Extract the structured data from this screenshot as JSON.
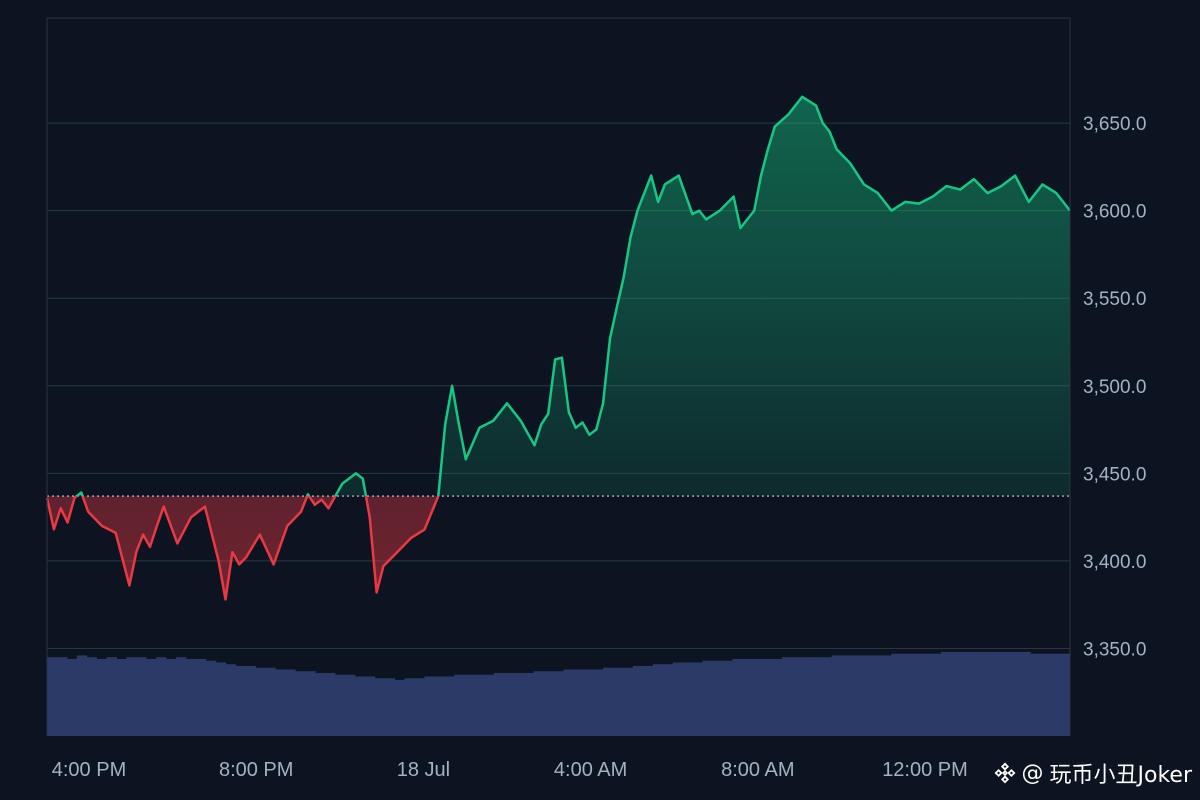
{
  "watermark": {
    "prefix": "@",
    "text": "玩币小丑Joker",
    "icon": "binance-diamond-icon"
  },
  "chart_data": {
    "type": "area",
    "title": "",
    "xlabel": "",
    "ylabel": "",
    "ylim": [
      3300,
      3710
    ],
    "yticks": [
      3350,
      3400,
      3450,
      3500,
      3550,
      3600,
      3650
    ],
    "ytick_labels": [
      "3,350.0",
      "3,400.0",
      "3,450.0",
      "3,500.0",
      "3,550.0",
      "3,600.0",
      "3,650.0"
    ],
    "x_range_hours": [
      15.7,
      30.6
    ],
    "xticks": [
      16,
      20,
      24,
      28,
      32,
      36
    ],
    "xtick_labels": [
      "4:00 PM",
      "8:00 PM",
      "18 Jul",
      "4:00 AM",
      "8:00 AM",
      "12:00 PM"
    ],
    "baseline": 3437,
    "grid": true,
    "legend": "none",
    "colors": {
      "above": "#16c784",
      "below": "#ea3943",
      "volume": "#2b3a66",
      "grid": "#2a3444",
      "axis_text": "#a6b0c3"
    },
    "series": [
      {
        "x": [
          15.7,
          15.8,
          15.9,
          16.0,
          16.1,
          16.2,
          16.3,
          16.5,
          16.7,
          16.9,
          17.0,
          17.1,
          17.2,
          17.3,
          17.4,
          17.6,
          17.8,
          18.0,
          18.2,
          18.3,
          18.4,
          18.5,
          18.6,
          18.8,
          19.0,
          19.2,
          19.4,
          19.5,
          19.6,
          19.7,
          19.8,
          20.0,
          20.2,
          20.3,
          20.4,
          20.5,
          20.6,
          20.8,
          21.0,
          21.2,
          21.4,
          21.5,
          21.6,
          21.7,
          21.8,
          22.0,
          22.2,
          22.4,
          22.6,
          22.8,
          22.9,
          23.0,
          23.1,
          23.2,
          23.3,
          23.4,
          23.5,
          23.6,
          23.7,
          23.8,
          23.9,
          24.0,
          24.1,
          24.2,
          24.3,
          24.4,
          24.5,
          24.6,
          24.7,
          24.9,
          25.1,
          25.2,
          25.3,
          25.5,
          25.7,
          25.8,
          26.0,
          26.1,
          26.2,
          26.3,
          26.5,
          26.7,
          26.9,
          27.0,
          27.1,
          27.2,
          27.4,
          27.6,
          27.8,
          28.0,
          28.2,
          28.4,
          28.6,
          28.8,
          29.0,
          29.2,
          29.4,
          29.6,
          29.8,
          30.0,
          30.2,
          30.4,
          30.6
        ],
        "values": [
          3436,
          3418,
          3430,
          3422,
          3436,
          3439,
          3428,
          3420,
          3416,
          3386,
          3405,
          3415,
          3408,
          3420,
          3431,
          3410,
          3425,
          3431,
          3400,
          3378,
          3405,
          3398,
          3402,
          3415,
          3398,
          3420,
          3428,
          3438,
          3432,
          3435,
          3430,
          3444,
          3450,
          3447,
          3425,
          3382,
          3397,
          3405,
          3413,
          3418,
          3437,
          3478,
          3500,
          3478,
          3458,
          3476,
          3480,
          3490,
          3480,
          3466,
          3478,
          3484,
          3515,
          3516,
          3485,
          3476,
          3479,
          3472,
          3475,
          3490,
          3527,
          3545,
          3562,
          3585,
          3600,
          3610,
          3620,
          3605,
          3615,
          3620,
          3598,
          3600,
          3595,
          3600,
          3608,
          3590,
          3600,
          3620,
          3635,
          3648,
          3655,
          3665,
          3660,
          3650,
          3645,
          3635,
          3627,
          3615,
          3610,
          3600,
          3605,
          3604,
          3608,
          3614,
          3612,
          3618,
          3610,
          3614,
          3620,
          3605,
          3615,
          3610,
          3600
        ],
        "volume": [
          3345,
          3345,
          3344,
          3346,
          3345,
          3344,
          3345,
          3344,
          3345,
          3345,
          3344,
          3345,
          3344,
          3345,
          3344,
          3344,
          3343,
          3342,
          3341,
          3340,
          3340,
          3339,
          3339,
          3338,
          3338,
          3337,
          3337,
          3336,
          3336,
          3335,
          3335,
          3334,
          3334,
          3333,
          3333,
          3332,
          3333,
          3333,
          3334,
          3334,
          3334,
          3335,
          3335,
          3335,
          3335,
          3336,
          3336,
          3336,
          3336,
          3337,
          3337,
          3337,
          3338,
          3338,
          3338,
          3338,
          3339,
          3339,
          3339,
          3340,
          3340,
          3341,
          3341,
          3342,
          3342,
          3342,
          3343,
          3343,
          3343,
          3344,
          3344,
          3344,
          3344,
          3344,
          3345,
          3345,
          3345,
          3345,
          3345,
          3346,
          3346,
          3346,
          3346,
          3346,
          3346,
          3347,
          3347,
          3347,
          3347,
          3347,
          3348,
          3348,
          3348,
          3348,
          3348,
          3348,
          3348,
          3348,
          3348,
          3347,
          3347,
          3347,
          3347
        ]
      }
    ]
  }
}
